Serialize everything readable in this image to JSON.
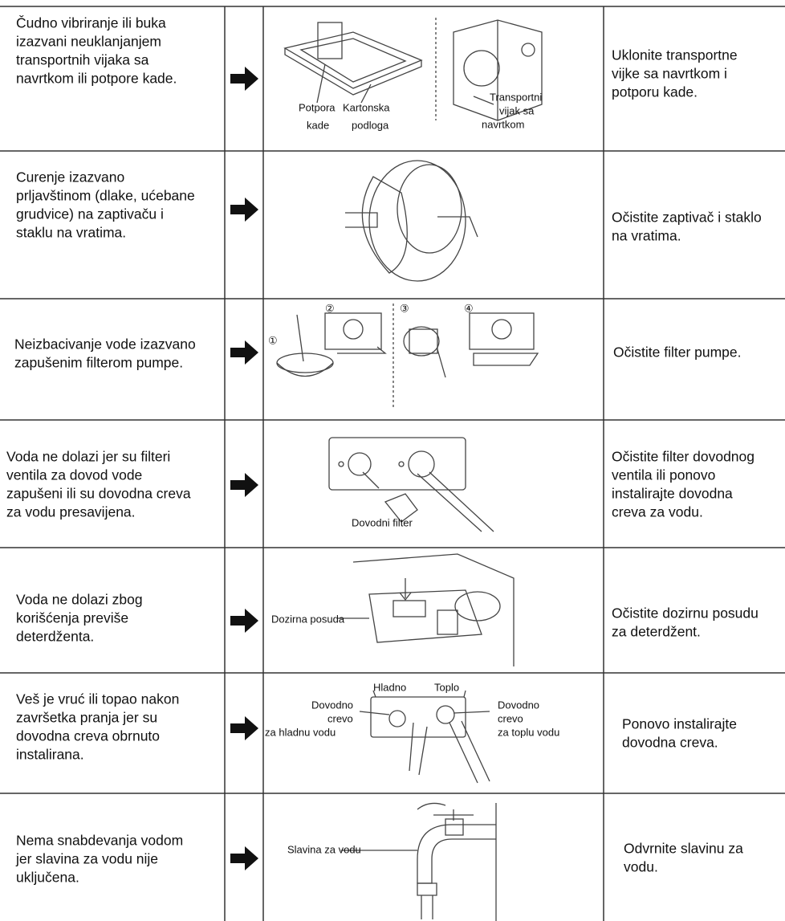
{
  "rows": [
    {
      "problem": [
        "Čudno vibriranje ili buka",
        "izazvani neuklanjanjem",
        "transportnih vijaka sa",
        "navrtkom ili potpore kade."
      ],
      "labels": [
        "Potpora",
        "kade",
        "Kartonska",
        "podloga",
        "Transportni",
        "vijak sa",
        "navrtkom"
      ],
      "solution": [
        "Uklonite transportne",
        "vijke sa navrtkom i",
        "potporu kade."
      ]
    },
    {
      "problem": [
        "Curenje izazvano",
        "prljavštinom (dlake, ućebane",
        "grudvice) na zaptivaču i",
        "staklu na vratima."
      ],
      "solution": [
        "Očistite zaptivač i staklo",
        "na vratima."
      ]
    },
    {
      "problem": [
        "Neizbacivanje vode izazvano",
        "zapušenim filterom pumpe."
      ],
      "labels": [
        "①",
        "②",
        "③",
        "④"
      ],
      "solution": [
        "Očistite filter pumpe."
      ]
    },
    {
      "problem": [
        "Voda ne dolazi jer su filteri",
        "ventila za dovod vode",
        "zapušeni ili su dovodna creva",
        "za vodu presavijena."
      ],
      "labels": [
        "Dovodni filter"
      ],
      "solution": [
        "Očistite filter dovodnog",
        "ventila ili ponovo",
        "instalirajte dovodna",
        "creva za vodu."
      ]
    },
    {
      "problem": [
        "Voda ne dolazi zbog",
        "korišćenja previše",
        "deterdženta."
      ],
      "labels": [
        "Dozirna posuda"
      ],
      "solution": [
        "Očistite dozirnu posudu",
        "za deterdžent."
      ]
    },
    {
      "problem": [
        "Veš je vruć ili topao nakon",
        "završetka pranja jer su",
        "dovodna creva obrnuto",
        "instalirana."
      ],
      "labels": [
        "Hladno",
        "Toplo",
        "Dovodno",
        "crevo",
        "za hladnu vodu",
        "Dovodno",
        "crevo",
        "za toplu vodu"
      ],
      "solution": [
        "Ponovo instalirajte",
        "dovodna creva."
      ]
    },
    {
      "problem": [
        "Nema snabdevanja vodom",
        "jer slavina za vodu nije",
        "uključena."
      ],
      "labels": [
        "Slavina za vodu"
      ],
      "solution": [
        "Odvrnite slavinu za",
        "vodu."
      ]
    }
  ]
}
